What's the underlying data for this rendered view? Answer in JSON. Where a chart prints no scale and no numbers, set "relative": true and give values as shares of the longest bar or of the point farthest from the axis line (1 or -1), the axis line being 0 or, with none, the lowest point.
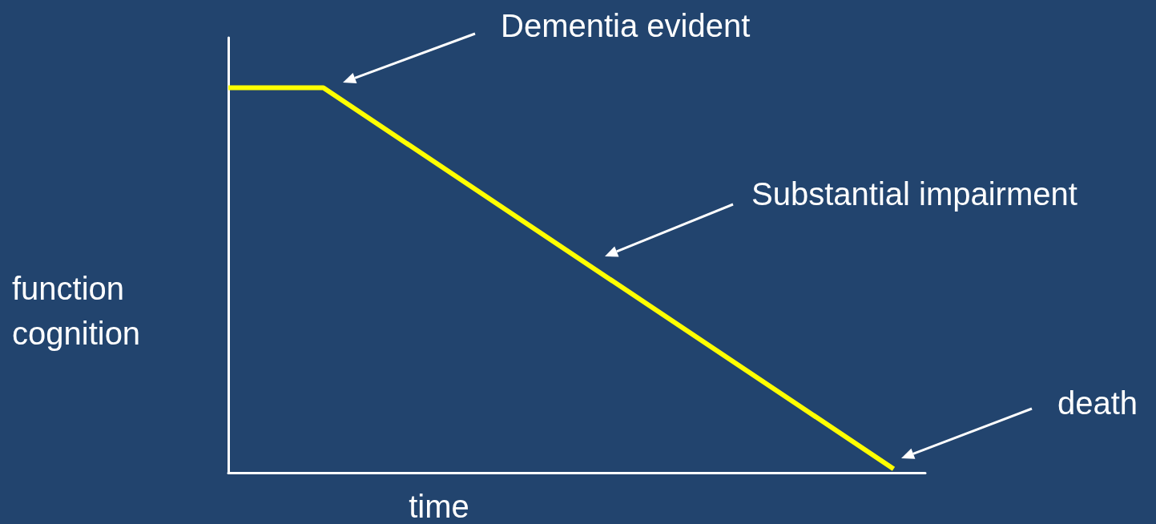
{
  "chart_data": {
    "type": "line",
    "relative": true,
    "xlabel": "time",
    "ylabel": "function\ncognition",
    "categories": [
      null,
      null,
      null,
      null,
      null,
      null,
      null,
      null,
      null,
      null,
      null,
      null,
      null,
      null,
      null,
      null,
      null,
      null,
      null,
      null,
      null,
      null,
      null
    ],
    "series": [
      {
        "color": "#ffff00",
        "values": [
          1,
          null,
          null,
          1,
          null,
          null,
          null,
          null,
          null,
          null,
          null,
          null,
          null,
          null,
          null,
          null,
          null,
          null,
          null,
          null,
          null,
          0.01,
          null
        ]
      }
    ],
    "annotations": [
      "Dementia evident",
      "Substantial impairment",
      "death"
    ]
  }
}
